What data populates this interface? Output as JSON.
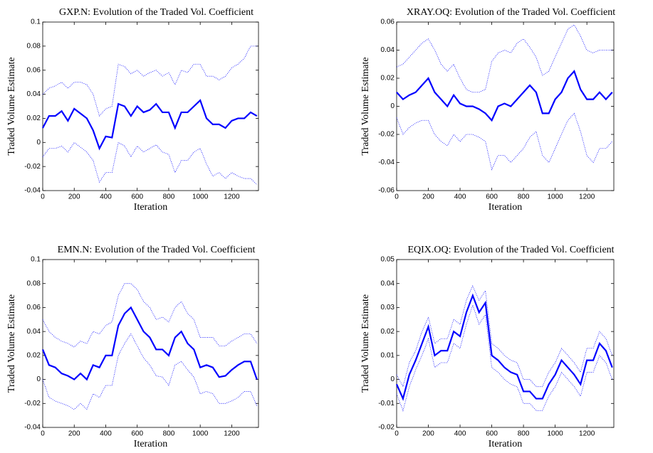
{
  "chart_data": [
    {
      "type": "line",
      "title": "GXP.N: Evolution of the Traded Vol. Coefficient",
      "xlabel": "Iteration",
      "ylabel": "Traded Volume Estimate",
      "x": [
        0,
        40,
        80,
        120,
        160,
        200,
        240,
        280,
        320,
        360,
        400,
        440,
        480,
        520,
        560,
        600,
        640,
        680,
        720,
        760,
        800,
        840,
        880,
        920,
        960,
        1000,
        1040,
        1080,
        1120,
        1160,
        1200,
        1240,
        1280,
        1320,
        1360
      ],
      "xlim": [
        0,
        1370
      ],
      "xticks": [
        0,
        200,
        400,
        600,
        800,
        1000,
        1200
      ],
      "ylim": [
        -0.04,
        0.1
      ],
      "yticks": [
        -0.04,
        -0.02,
        0,
        0.02,
        0.04,
        0.06,
        0.08,
        0.1
      ],
      "grid": false,
      "series": [
        {
          "color": "#0000ff",
          "linewidth": 2.2,
          "values": [
            0.012,
            0.022,
            0.022,
            0.026,
            0.018,
            0.028,
            0.024,
            0.02,
            0.01,
            -0.005,
            0.005,
            0.004,
            0.032,
            0.03,
            0.022,
            0.03,
            0.025,
            0.027,
            0.032,
            0.025,
            0.025,
            0.012,
            0.025,
            0.025,
            0.03,
            0.035,
            0.02,
            0.015,
            0.015,
            0.012,
            0.018,
            0.02,
            0.02,
            0.025,
            0.022
          ]
        },
        {
          "color": "#0000ff",
          "linestyle": "dotted",
          "values": [
            0.04,
            0.045,
            0.047,
            0.05,
            0.045,
            0.05,
            0.05,
            0.048,
            0.04,
            0.022,
            0.028,
            0.03,
            0.065,
            0.063,
            0.057,
            0.06,
            0.055,
            0.058,
            0.06,
            0.055,
            0.058,
            0.048,
            0.06,
            0.058,
            0.065,
            0.065,
            0.055,
            0.055,
            0.052,
            0.055,
            0.062,
            0.065,
            0.07,
            0.08,
            0.08
          ]
        },
        {
          "color": "#0000ff",
          "linestyle": "dotted",
          "values": [
            -0.012,
            -0.005,
            -0.005,
            -0.003,
            -0.008,
            0.0,
            -0.004,
            -0.008,
            -0.015,
            -0.033,
            -0.025,
            -0.025,
            0.0,
            -0.003,
            -0.012,
            -0.003,
            -0.008,
            -0.005,
            -0.002,
            -0.008,
            -0.01,
            -0.025,
            -0.015,
            -0.015,
            -0.008,
            -0.005,
            -0.018,
            -0.028,
            -0.025,
            -0.03,
            -0.025,
            -0.028,
            -0.03,
            -0.03,
            -0.035
          ]
        }
      ]
    },
    {
      "type": "line",
      "title": "XRAY.OQ: Evolution of the Traded Vol. Coefficient",
      "xlabel": "Iteration",
      "ylabel": "Traded Volume Estimate",
      "x": [
        0,
        40,
        80,
        120,
        160,
        200,
        240,
        280,
        320,
        360,
        400,
        440,
        480,
        520,
        560,
        600,
        640,
        680,
        720,
        760,
        800,
        840,
        880,
        920,
        960,
        1000,
        1040,
        1080,
        1120,
        1160,
        1200,
        1240,
        1280,
        1320,
        1360
      ],
      "xlim": [
        0,
        1370
      ],
      "xticks": [
        0,
        200,
        400,
        600,
        800,
        1000,
        1200
      ],
      "ylim": [
        -0.06,
        0.06
      ],
      "yticks": [
        -0.06,
        -0.04,
        -0.02,
        0,
        0.02,
        0.04,
        0.06
      ],
      "grid": false,
      "series": [
        {
          "color": "#0000ff",
          "linewidth": 2.2,
          "values": [
            0.01,
            0.005,
            0.008,
            0.01,
            0.015,
            0.02,
            0.01,
            0.005,
            0.0,
            0.008,
            0.002,
            0.0,
            0.0,
            -0.002,
            -0.005,
            -0.01,
            0.0,
            0.002,
            0.0,
            0.005,
            0.01,
            0.015,
            0.01,
            -0.005,
            -0.005,
            0.005,
            0.01,
            0.02,
            0.025,
            0.012,
            0.005,
            0.005,
            0.01,
            0.005,
            0.01
          ]
        },
        {
          "color": "#0000ff",
          "linestyle": "dotted",
          "values": [
            0.028,
            0.03,
            0.035,
            0.04,
            0.045,
            0.048,
            0.04,
            0.03,
            0.025,
            0.03,
            0.02,
            0.012,
            0.01,
            0.01,
            0.012,
            0.032,
            0.038,
            0.04,
            0.038,
            0.045,
            0.048,
            0.042,
            0.035,
            0.022,
            0.025,
            0.035,
            0.045,
            0.055,
            0.058,
            0.05,
            0.04,
            0.038,
            0.04,
            0.04,
            0.04
          ]
        },
        {
          "color": "#0000ff",
          "linestyle": "dotted",
          "values": [
            -0.008,
            -0.02,
            -0.015,
            -0.012,
            -0.01,
            -0.01,
            -0.02,
            -0.025,
            -0.028,
            -0.02,
            -0.025,
            -0.02,
            -0.02,
            -0.022,
            -0.025,
            -0.045,
            -0.035,
            -0.035,
            -0.04,
            -0.035,
            -0.03,
            -0.022,
            -0.018,
            -0.035,
            -0.04,
            -0.03,
            -0.02,
            -0.01,
            -0.005,
            -0.018,
            -0.035,
            -0.04,
            -0.03,
            -0.03,
            -0.025
          ]
        }
      ]
    },
    {
      "type": "line",
      "title": "EMN.N: Evolution of the Traded Vol. Coefficient",
      "xlabel": "Iteration",
      "ylabel": "Traded Volume Estimate",
      "x": [
        0,
        40,
        80,
        120,
        160,
        200,
        240,
        280,
        320,
        360,
        400,
        440,
        480,
        520,
        560,
        600,
        640,
        680,
        720,
        760,
        800,
        840,
        880,
        920,
        960,
        1000,
        1040,
        1080,
        1120,
        1160,
        1200,
        1240,
        1280,
        1320,
        1360
      ],
      "xlim": [
        0,
        1370
      ],
      "xticks": [
        0,
        200,
        400,
        600,
        800,
        1000,
        1200
      ],
      "ylim": [
        -0.04,
        0.1
      ],
      "yticks": [
        -0.04,
        -0.02,
        0,
        0.02,
        0.04,
        0.06,
        0.08,
        0.1
      ],
      "grid": false,
      "series": [
        {
          "color": "#0000ff",
          "linewidth": 2.2,
          "values": [
            0.025,
            0.012,
            0.01,
            0.005,
            0.003,
            0.0,
            0.005,
            0.0,
            0.012,
            0.01,
            0.02,
            0.02,
            0.045,
            0.055,
            0.06,
            0.05,
            0.04,
            0.035,
            0.025,
            0.025,
            0.02,
            0.035,
            0.04,
            0.03,
            0.025,
            0.01,
            0.012,
            0.01,
            0.002,
            0.003,
            0.008,
            0.012,
            0.015,
            0.015,
            0.0
          ]
        },
        {
          "color": "#0000ff",
          "linestyle": "dotted",
          "values": [
            0.05,
            0.04,
            0.035,
            0.032,
            0.03,
            0.027,
            0.032,
            0.03,
            0.04,
            0.038,
            0.045,
            0.048,
            0.07,
            0.08,
            0.08,
            0.075,
            0.065,
            0.06,
            0.05,
            0.052,
            0.048,
            0.06,
            0.065,
            0.055,
            0.05,
            0.035,
            0.035,
            0.035,
            0.028,
            0.028,
            0.032,
            0.035,
            0.038,
            0.038,
            0.03
          ]
        },
        {
          "color": "#0000ff",
          "linestyle": "dotted",
          "values": [
            0.0,
            -0.015,
            -0.018,
            -0.02,
            -0.022,
            -0.025,
            -0.02,
            -0.025,
            -0.012,
            -0.015,
            -0.005,
            -0.005,
            0.02,
            0.03,
            0.038,
            0.028,
            0.018,
            0.012,
            0.003,
            0.002,
            -0.005,
            0.012,
            0.015,
            0.008,
            0.002,
            -0.012,
            -0.01,
            -0.012,
            -0.02,
            -0.02,
            -0.018,
            -0.015,
            -0.01,
            -0.01,
            -0.022
          ]
        }
      ]
    },
    {
      "type": "line",
      "title": "EQIX.OQ: Evolution of the Traded Vol. Coefficient",
      "xlabel": "Iteration",
      "ylabel": "Traded Volume Estimate",
      "x": [
        0,
        40,
        80,
        120,
        160,
        200,
        240,
        280,
        320,
        360,
        400,
        440,
        480,
        520,
        560,
        600,
        640,
        680,
        720,
        760,
        800,
        840,
        880,
        920,
        960,
        1000,
        1040,
        1080,
        1120,
        1160,
        1200,
        1240,
        1280,
        1320,
        1360
      ],
      "xlim": [
        0,
        1370
      ],
      "xticks": [
        0,
        200,
        400,
        600,
        800,
        1000,
        1200
      ],
      "ylim": [
        -0.02,
        0.05
      ],
      "yticks": [
        -0.02,
        -0.01,
        0,
        0.01,
        0.02,
        0.03,
        0.04,
        0.05
      ],
      "grid": false,
      "series": [
        {
          "color": "#0000ff",
          "linewidth": 2.2,
          "values": [
            -0.002,
            -0.008,
            0.002,
            0.008,
            0.015,
            0.022,
            0.01,
            0.012,
            0.012,
            0.02,
            0.018,
            0.028,
            0.035,
            0.028,
            0.032,
            0.01,
            0.008,
            0.005,
            0.003,
            0.002,
            -0.005,
            -0.005,
            -0.008,
            -0.008,
            -0.002,
            0.002,
            0.008,
            0.005,
            0.002,
            -0.002,
            0.008,
            0.008,
            0.015,
            0.012,
            0.005
          ]
        },
        {
          "color": "#0000ff",
          "linestyle": "dotted",
          "values": [
            0.002,
            -0.003,
            0.007,
            0.012,
            0.02,
            0.026,
            0.015,
            0.017,
            0.017,
            0.025,
            0.023,
            0.033,
            0.039,
            0.033,
            0.037,
            0.015,
            0.013,
            0.01,
            0.008,
            0.007,
            0.0,
            0.0,
            -0.003,
            -0.003,
            0.003,
            0.007,
            0.013,
            0.01,
            0.007,
            0.003,
            0.013,
            0.013,
            0.02,
            0.017,
            0.01
          ]
        },
        {
          "color": "#0000ff",
          "linestyle": "dotted",
          "values": [
            -0.006,
            -0.013,
            -0.003,
            0.004,
            0.01,
            0.017,
            0.005,
            0.007,
            0.007,
            0.015,
            0.013,
            0.023,
            0.031,
            0.023,
            0.027,
            0.005,
            0.003,
            0.0,
            -0.002,
            -0.003,
            -0.01,
            -0.01,
            -0.013,
            -0.013,
            -0.007,
            -0.003,
            0.003,
            0.0,
            -0.003,
            -0.007,
            0.003,
            0.003,
            0.01,
            0.007,
            0.0
          ]
        }
      ]
    }
  ]
}
